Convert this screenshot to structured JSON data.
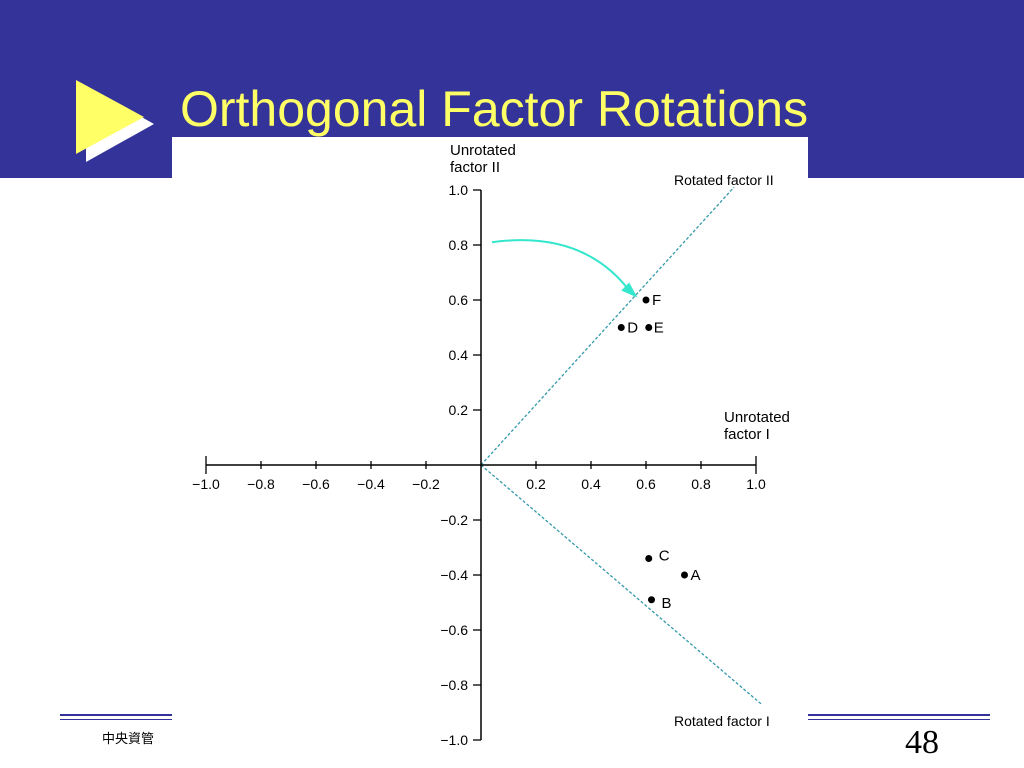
{
  "slide": {
    "title": "Orthogonal Factor Rotations",
    "footer_text": "中央資管",
    "page_number": "48",
    "colors": {
      "header_background": "#333399",
      "title_text": "#ffff66",
      "arrow_fill": "#ffff66",
      "arrow_shadow": "#ffffff",
      "rotated_axis": "#3399aa",
      "rotation_arrow": "#33e6cc"
    },
    "icons": {
      "bullet": "play-triangle-icon"
    }
  },
  "chart_data": {
    "type": "scatter",
    "xlim": [
      -1.0,
      1.0
    ],
    "ylim": [
      -1.0,
      1.0
    ],
    "x_ticks": [
      -1.0,
      -0.8,
      -0.6,
      -0.4,
      -0.2,
      0.2,
      0.4,
      0.6,
      0.8,
      1.0
    ],
    "y_ticks": [
      1.0,
      0.8,
      0.6,
      0.4,
      0.2,
      -0.2,
      -0.4,
      -0.6,
      -0.8,
      -1.0
    ],
    "x_tick_labels": [
      "−1.0",
      "−0.8",
      "−0.6",
      "−0.4",
      "−0.2",
      "0.2",
      "0.4",
      "0.6",
      "0.8",
      "1.0"
    ],
    "y_tick_labels": [
      "1.0",
      "0.8",
      "0.6",
      "0.4",
      "0.2",
      "−0.2",
      "−0.4",
      "−0.6",
      "−0.8",
      "−1.0"
    ],
    "x_axis_label": [
      "Unrotated",
      "factor I"
    ],
    "y_axis_label": [
      "Unrotated",
      "factor II"
    ],
    "rotated_axes": [
      {
        "name": "Rotated factor II",
        "from": [
          0,
          0
        ],
        "to": [
          0.92,
          1.01
        ]
      },
      {
        "name": "Rotated factor I",
        "from": [
          0,
          0
        ],
        "to": [
          1.02,
          -0.87
        ]
      }
    ],
    "rotation_arrow": {
      "from": [
        0.04,
        0.81
      ],
      "via": [
        0.38,
        0.82
      ],
      "to": [
        0.55,
        0.62
      ]
    },
    "points": [
      {
        "label": "F",
        "x": 0.6,
        "y": 0.6
      },
      {
        "label": "D",
        "x": 0.51,
        "y": 0.5
      },
      {
        "label": "E",
        "x": 0.61,
        "y": 0.5
      },
      {
        "label": "C",
        "x": 0.61,
        "y": -0.34
      },
      {
        "label": "A",
        "x": 0.74,
        "y": -0.4
      },
      {
        "label": "B",
        "x": 0.62,
        "y": -0.49
      }
    ],
    "grid": false,
    "legend": "none"
  }
}
